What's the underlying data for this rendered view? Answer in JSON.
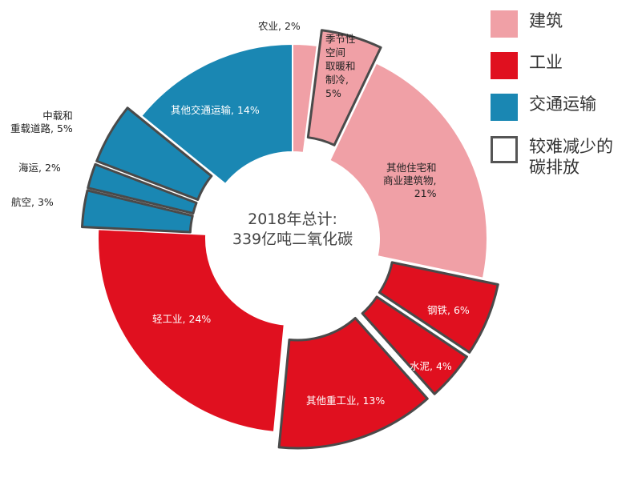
{
  "chart_data": {
    "type": "pie",
    "title": "2018年总计:\n339亿吨二氧化碳",
    "unit": "%",
    "categories": [
      {
        "name": "建筑",
        "color": "#f0a0a6"
      },
      {
        "name": "工业",
        "color": "#e0101f"
      },
      {
        "name": "交通运输",
        "color": "#1a87b3"
      }
    ],
    "hard_to_abate_legend": "较难减少的\n碳排放",
    "slices": [
      {
        "label": "农业, 2%",
        "value": 2,
        "category": "建筑",
        "hard": false
      },
      {
        "label": "季节性\n空间\n取暖和\n制冷,\n5%",
        "value": 5,
        "category": "建筑",
        "hard": true
      },
      {
        "label": "其他住宅和\n商业建筑物,\n21%",
        "value": 21,
        "category": "建筑",
        "hard": false
      },
      {
        "label": "钢铁, 6%",
        "value": 6,
        "category": "工业",
        "hard": true
      },
      {
        "label": "水泥, 4%",
        "value": 4,
        "category": "工业",
        "hard": true
      },
      {
        "label": "其他重工业, 13%",
        "value": 13,
        "category": "工业",
        "hard": true
      },
      {
        "label": "轻工业, 24%",
        "value": 24,
        "category": "工业",
        "hard": false
      },
      {
        "label": "航空, 3%",
        "value": 3,
        "category": "交通运输",
        "hard": true
      },
      {
        "label": "海运, 2%",
        "value": 2,
        "category": "交通运输",
        "hard": true
      },
      {
        "label": "中载和\n重载道路, 5%",
        "value": 5,
        "category": "交通运输",
        "hard": true
      },
      {
        "label": "其他交通运输, 14%",
        "value": 14,
        "category": "交通运输",
        "hard": false
      }
    ],
    "legend_position": "top-right"
  }
}
